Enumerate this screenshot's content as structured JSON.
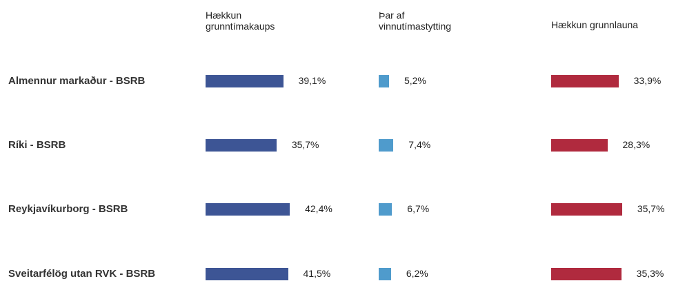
{
  "chart_data": {
    "type": "bar",
    "categories": [
      "Almennur markaður - BSRB",
      "Ríki - BSRB",
      "Reykjavíkurborg - BSRB",
      "Sveitarfélög utan RVK - BSRB"
    ],
    "series": [
      {
        "name": "Hækkun grunntímakaups",
        "color": "#3d5595",
        "values": [
          39.1,
          35.7,
          42.4,
          41.5
        ],
        "value_labels": [
          "39,1%",
          "35,7%",
          "42,4%",
          "41,5%"
        ]
      },
      {
        "name": "Þar af vinnutímastytting",
        "color": "#4f9bcc",
        "values": [
          5.2,
          7.4,
          6.7,
          6.2
        ],
        "value_labels": [
          "5,2%",
          "7,4%",
          "6,7%",
          "6,2%"
        ]
      },
      {
        "name": "Hækkun grunnlauna",
        "color": "#b02a3e",
        "values": [
          33.9,
          28.3,
          35.7,
          35.3
        ],
        "value_labels": [
          "33,9%",
          "28,3%",
          "35,7%",
          "35,3%"
        ]
      }
    ]
  }
}
